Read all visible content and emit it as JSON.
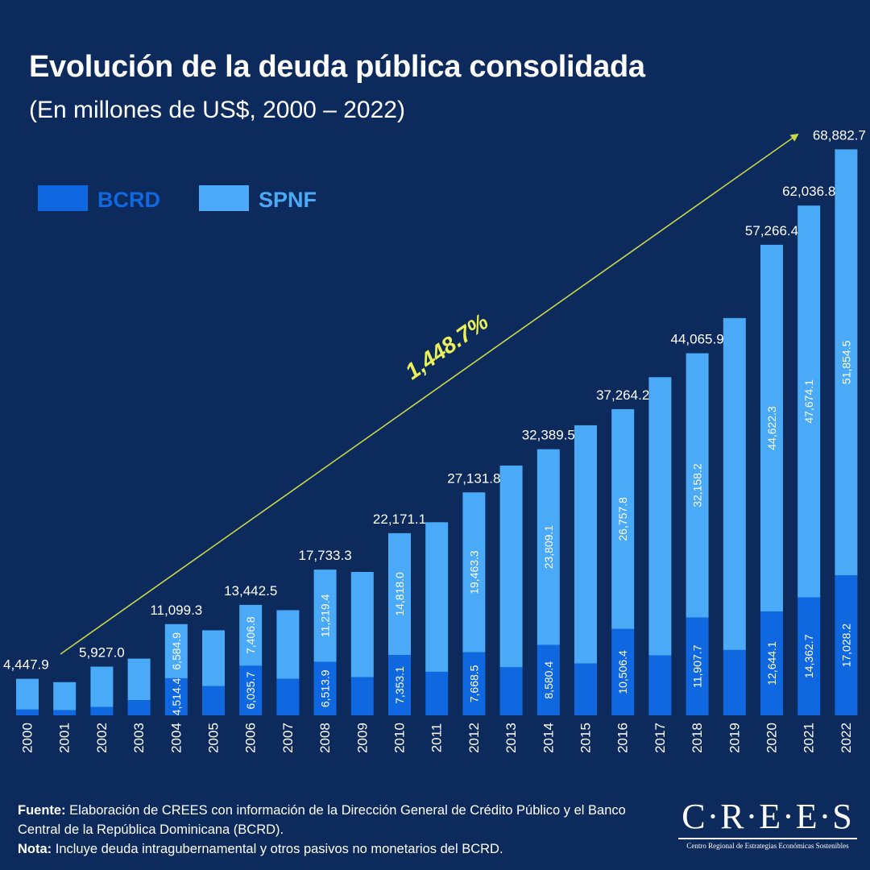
{
  "title": "Evolución de la deuda pública consolidada",
  "subtitle": "(En millones de US$, 2000 – 2022)",
  "growth_label": "1,448.7%",
  "colors": {
    "background": "#0d2a5c",
    "bcrd": "#1068e0",
    "spnf": "#4aaaf7",
    "arrow": "#c8d64a",
    "growth": "#e9f25a"
  },
  "chart_data": {
    "type": "bar",
    "stacked": true,
    "categories": [
      "2000",
      "2001",
      "2002",
      "2003",
      "2004",
      "2005",
      "2006",
      "2007",
      "2008",
      "2009",
      "2010",
      "2011",
      "2012",
      "2013",
      "2014",
      "2015",
      "2016",
      "2017",
      "2018",
      "2019",
      "2020",
      "2021",
      "2022"
    ],
    "series": [
      {
        "name": "BCRD",
        "values": [
          700,
          640,
          1000,
          1850,
          4514.4,
          3550,
          6035.7,
          4450,
          6513.9,
          4650,
          7353.1,
          5300,
          7668.5,
          5850,
          8580.4,
          6300,
          10506.4,
          7300,
          11907.7,
          7950,
          12644.1,
          14362.7,
          17028.2
        ],
        "labels": [
          "",
          "",
          "",
          "",
          "4,514.4",
          "",
          "6,035.7",
          "",
          "6,513.9",
          "",
          "7,353.1",
          "",
          "7,668.5",
          "",
          "8,580.4",
          "",
          "10,506.4",
          "",
          "11,907.7",
          "",
          "12,644.1",
          "14,362.7",
          "17,028.2"
        ]
      },
      {
        "name": "SPNF",
        "values": [
          3747.9,
          3400,
          4927,
          5050,
          6584.9,
          6800,
          7406.8,
          8350,
          11219.4,
          12800,
          14818,
          18200,
          19463.3,
          24550,
          23809.1,
          29000,
          26757.8,
          33850,
          32158.2,
          40400,
          44622.3,
          47674.1,
          51854.5
        ],
        "labels": [
          "",
          "",
          "",
          "",
          "6,584.9",
          "",
          "7,406.8",
          "",
          "11,219.4",
          "",
          "14,818.0",
          "",
          "19,463.3",
          "",
          "23,809.1",
          "",
          "26,757.8",
          "",
          "32,158.2",
          "",
          "44,622.3",
          "47,674.1",
          "51,854.5"
        ]
      }
    ],
    "total_labels": [
      "4,447.9",
      "",
      "5,927.0",
      "",
      "11,099.3",
      "",
      "13,442.5",
      "",
      "17,733.3",
      "",
      "22,171.1",
      "",
      "27,131.8",
      "",
      "32,389.5",
      "",
      "37,264.2",
      "",
      "44,065.9",
      "",
      "57,266.4",
      "62,036.8",
      "68,882.7"
    ],
    "ylim": [
      0,
      70000
    ],
    "legend": [
      {
        "label": "BCRD"
      },
      {
        "label": "SPNF"
      }
    ]
  },
  "footer": {
    "source_label": "Fuente:",
    "source_text": " Elaboración de CREES con información de la Dirección General de Crédito Público y el Banco Central de la República Dominicana (BCRD).",
    "note_label": "Nota:",
    "note_text": " Incluye deuda intragubernamental y otros pasivos no monetarios del BCRD."
  },
  "logo": {
    "word": "C·R·E·E·S",
    "tagline": "Centro Regional de Estrategias Económicas Sostenibles"
  }
}
